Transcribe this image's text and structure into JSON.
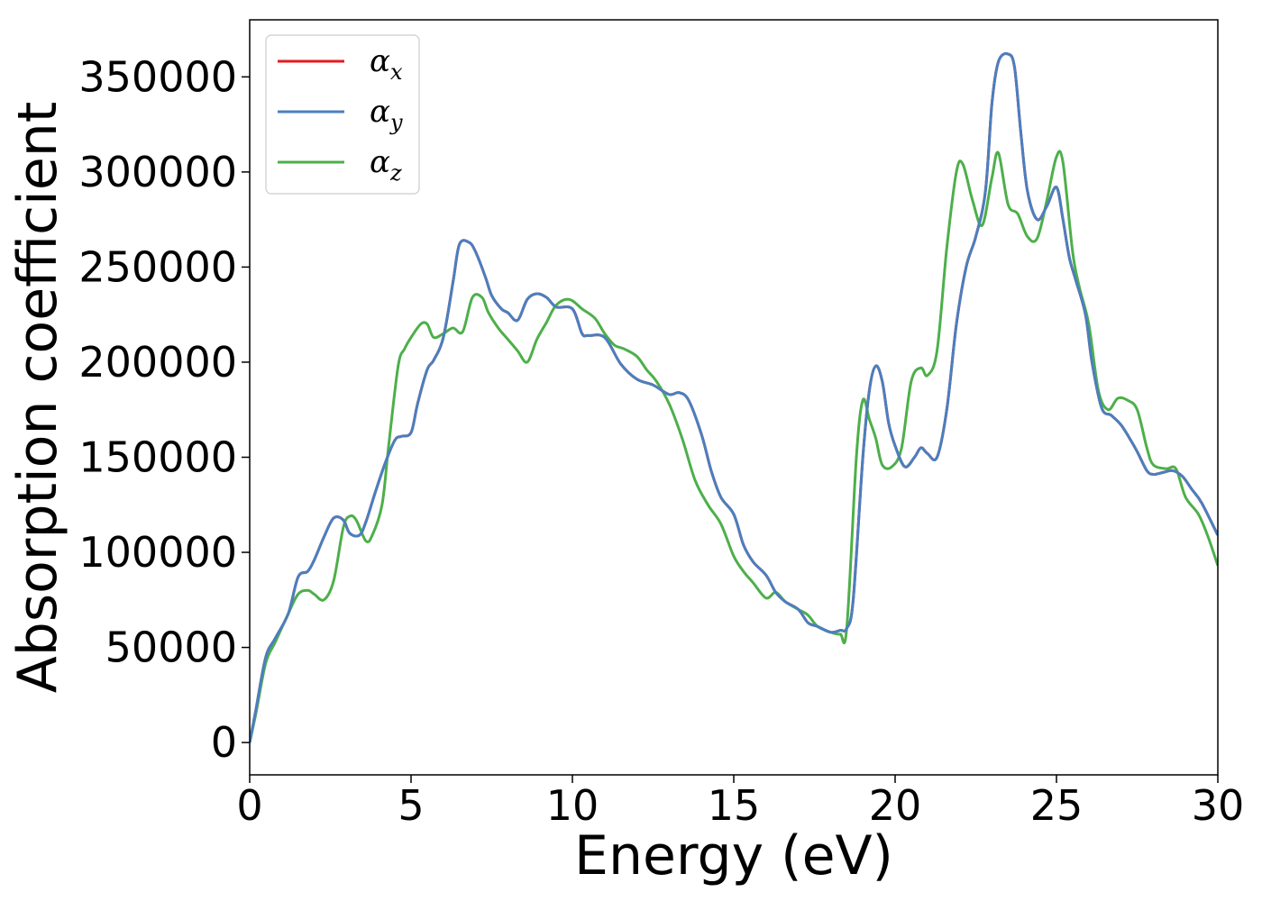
{
  "chart_data": {
    "type": "line",
    "xlabel": "Energy (eV)",
    "ylabel": "Absorption coefficient",
    "xlim": [
      0,
      30
    ],
    "ylim": [
      -17000,
      380000
    ],
    "xticks": [
      0,
      5,
      10,
      15,
      20,
      25,
      30
    ],
    "yticks": [
      0,
      50000,
      100000,
      150000,
      200000,
      250000,
      300000,
      350000
    ],
    "grid": false,
    "legend_position": "top-left",
    "series": [
      {
        "name": "α_x",
        "color": "#e41a1c",
        "x": [
          0,
          0.2,
          0.5,
          0.8,
          1.2,
          1.5,
          1.8,
          2.0,
          2.3,
          2.6,
          2.9,
          3.1,
          3.4,
          3.6,
          3.9,
          4.2,
          4.5,
          4.7,
          5.0,
          5.2,
          5.5,
          5.7,
          6.0,
          6.3,
          6.5,
          6.8,
          7.0,
          7.3,
          7.5,
          7.8,
          8.0,
          8.3,
          8.6,
          8.9,
          9.2,
          9.5,
          10.0,
          10.3,
          10.5,
          11.0,
          11.5,
          12.0,
          12.5,
          13.0,
          13.3,
          13.6,
          14.0,
          14.3,
          14.6,
          15.0,
          15.3,
          15.6,
          16.0,
          16.3,
          16.6,
          17.0,
          17.3,
          17.6,
          18.0,
          18.3,
          18.5,
          18.7,
          19.0,
          19.2,
          19.4,
          19.6,
          19.8,
          20.0,
          20.3,
          20.6,
          20.8,
          21.0,
          21.3,
          21.6,
          21.9,
          22.2,
          22.5,
          22.8,
          23.0,
          23.2,
          23.5,
          23.7,
          23.9,
          24.1,
          24.4,
          24.7,
          25.0,
          25.2,
          25.4,
          25.6,
          25.9,
          26.1,
          26.4,
          26.7,
          27.0,
          27.3,
          27.5,
          27.8,
          28.0,
          28.3,
          28.6,
          28.9,
          29.2,
          29.5,
          30.0
        ],
        "values": [
          0,
          18000,
          45000,
          55000,
          68000,
          87000,
          90000,
          96000,
          108000,
          118000,
          117000,
          110000,
          109000,
          116000,
          132000,
          147000,
          159000,
          161000,
          163000,
          178000,
          196000,
          201000,
          213000,
          242000,
          262000,
          263000,
          258000,
          245000,
          235000,
          228000,
          226000,
          222000,
          233000,
          236000,
          234000,
          229000,
          228000,
          215000,
          214000,
          213000,
          199000,
          191000,
          188000,
          183000,
          184000,
          180000,
          162000,
          143000,
          129000,
          120000,
          104000,
          95000,
          88000,
          79000,
          74000,
          70000,
          63000,
          61000,
          58000,
          59000,
          60000,
          75000,
          150000,
          185000,
          198000,
          190000,
          168000,
          156000,
          145000,
          150000,
          155000,
          152000,
          150000,
          175000,
          220000,
          250000,
          266000,
          290000,
          336000,
          358000,
          362000,
          355000,
          320000,
          290000,
          275000,
          282000,
          292000,
          275000,
          255000,
          243000,
          225000,
          200000,
          176000,
          172000,
          167000,
          159000,
          153000,
          143000,
          141000,
          142000,
          143000,
          140000,
          133000,
          126000,
          109000
        ]
      },
      {
        "name": "α_y",
        "color": "#4a7fbf",
        "x": [
          0,
          0.2,
          0.5,
          0.8,
          1.2,
          1.5,
          1.8,
          2.0,
          2.3,
          2.6,
          2.9,
          3.1,
          3.4,
          3.6,
          3.9,
          4.2,
          4.5,
          4.7,
          5.0,
          5.2,
          5.5,
          5.7,
          6.0,
          6.3,
          6.5,
          6.8,
          7.0,
          7.3,
          7.5,
          7.8,
          8.0,
          8.3,
          8.6,
          8.9,
          9.2,
          9.5,
          10.0,
          10.3,
          10.5,
          11.0,
          11.5,
          12.0,
          12.5,
          13.0,
          13.3,
          13.6,
          14.0,
          14.3,
          14.6,
          15.0,
          15.3,
          15.6,
          16.0,
          16.3,
          16.6,
          17.0,
          17.3,
          17.6,
          18.0,
          18.3,
          18.5,
          18.7,
          19.0,
          19.2,
          19.4,
          19.6,
          19.8,
          20.0,
          20.3,
          20.6,
          20.8,
          21.0,
          21.3,
          21.6,
          21.9,
          22.2,
          22.5,
          22.8,
          23.0,
          23.2,
          23.5,
          23.7,
          23.9,
          24.1,
          24.4,
          24.7,
          25.0,
          25.2,
          25.4,
          25.6,
          25.9,
          26.1,
          26.4,
          26.7,
          27.0,
          27.3,
          27.5,
          27.8,
          28.0,
          28.3,
          28.6,
          28.9,
          29.2,
          29.5,
          30.0
        ],
        "values": [
          0,
          18000,
          45000,
          55000,
          68000,
          87000,
          90000,
          96000,
          108000,
          118000,
          117000,
          110000,
          109000,
          116000,
          132000,
          147000,
          159000,
          161000,
          163000,
          178000,
          196000,
          201000,
          213000,
          242000,
          262000,
          263000,
          258000,
          245000,
          235000,
          228000,
          226000,
          222000,
          233000,
          236000,
          234000,
          229000,
          228000,
          215000,
          214000,
          213000,
          199000,
          191000,
          188000,
          183000,
          184000,
          180000,
          162000,
          143000,
          129000,
          120000,
          104000,
          95000,
          88000,
          79000,
          74000,
          70000,
          63000,
          61000,
          58000,
          59000,
          60000,
          75000,
          150000,
          185000,
          198000,
          190000,
          168000,
          156000,
          145000,
          150000,
          155000,
          152000,
          150000,
          175000,
          220000,
          250000,
          266000,
          290000,
          336000,
          358000,
          362000,
          355000,
          320000,
          290000,
          275000,
          282000,
          292000,
          275000,
          255000,
          243000,
          225000,
          200000,
          176000,
          172000,
          167000,
          159000,
          153000,
          143000,
          141000,
          142000,
          143000,
          140000,
          133000,
          126000,
          109000
        ]
      },
      {
        "name": "α_z",
        "color": "#4daf4a",
        "x": [
          0,
          0.2,
          0.5,
          0.8,
          1.2,
          1.5,
          1.8,
          2.0,
          2.3,
          2.6,
          2.9,
          3.1,
          3.3,
          3.6,
          3.8,
          4.1,
          4.3,
          4.6,
          4.8,
          5.0,
          5.3,
          5.5,
          5.7,
          6.0,
          6.3,
          6.6,
          6.9,
          7.2,
          7.4,
          7.7,
          8.0,
          8.3,
          8.6,
          8.9,
          9.2,
          9.5,
          9.9,
          10.3,
          10.7,
          11.0,
          11.3,
          11.6,
          12.0,
          12.3,
          12.6,
          13.0,
          13.4,
          13.8,
          14.2,
          14.6,
          15.0,
          15.3,
          15.6,
          16.0,
          16.3,
          16.6,
          17.0,
          17.3,
          17.6,
          18.0,
          18.3,
          18.5,
          18.8,
          19.0,
          19.2,
          19.4,
          19.6,
          19.9,
          20.2,
          20.5,
          20.8,
          21.0,
          21.3,
          21.6,
          21.9,
          22.1,
          22.4,
          22.7,
          23.0,
          23.2,
          23.5,
          23.8,
          24.1,
          24.4,
          24.7,
          25.0,
          25.2,
          25.5,
          25.7,
          26.0,
          26.3,
          26.6,
          26.9,
          27.2,
          27.5,
          27.8,
          28.0,
          28.4,
          28.7,
          29.0,
          29.4,
          29.7,
          30.0
        ],
        "values": [
          0,
          16000,
          42000,
          53000,
          68000,
          78000,
          80000,
          78000,
          75000,
          85000,
          113000,
          119000,
          117000,
          106000,
          109000,
          125000,
          155000,
          198000,
          207000,
          213000,
          220000,
          220000,
          213000,
          215000,
          218000,
          216000,
          234000,
          234000,
          226000,
          218000,
          212000,
          206000,
          200000,
          212000,
          221000,
          230000,
          233000,
          228000,
          223000,
          215000,
          209000,
          207000,
          203000,
          196000,
          190000,
          178000,
          160000,
          138000,
          125000,
          115000,
          98000,
          90000,
          84000,
          76000,
          79000,
          74000,
          70000,
          67000,
          61000,
          58000,
          57000,
          60000,
          150000,
          180000,
          170000,
          160000,
          146000,
          145000,
          155000,
          190000,
          197000,
          193000,
          206000,
          260000,
          300000,
          304000,
          285000,
          272000,
          297000,
          310000,
          283000,
          278000,
          266000,
          265000,
          285000,
          308000,
          305000,
          258000,
          240000,
          220000,
          185000,
          175000,
          181000,
          180000,
          175000,
          155000,
          146000,
          144000,
          144000,
          129000,
          120000,
          108000,
          93000
        ]
      }
    ],
    "legend": [
      {
        "symbol": "α",
        "sub": "x"
      },
      {
        "symbol": "α",
        "sub": "y"
      },
      {
        "symbol": "α",
        "sub": "z"
      }
    ]
  }
}
